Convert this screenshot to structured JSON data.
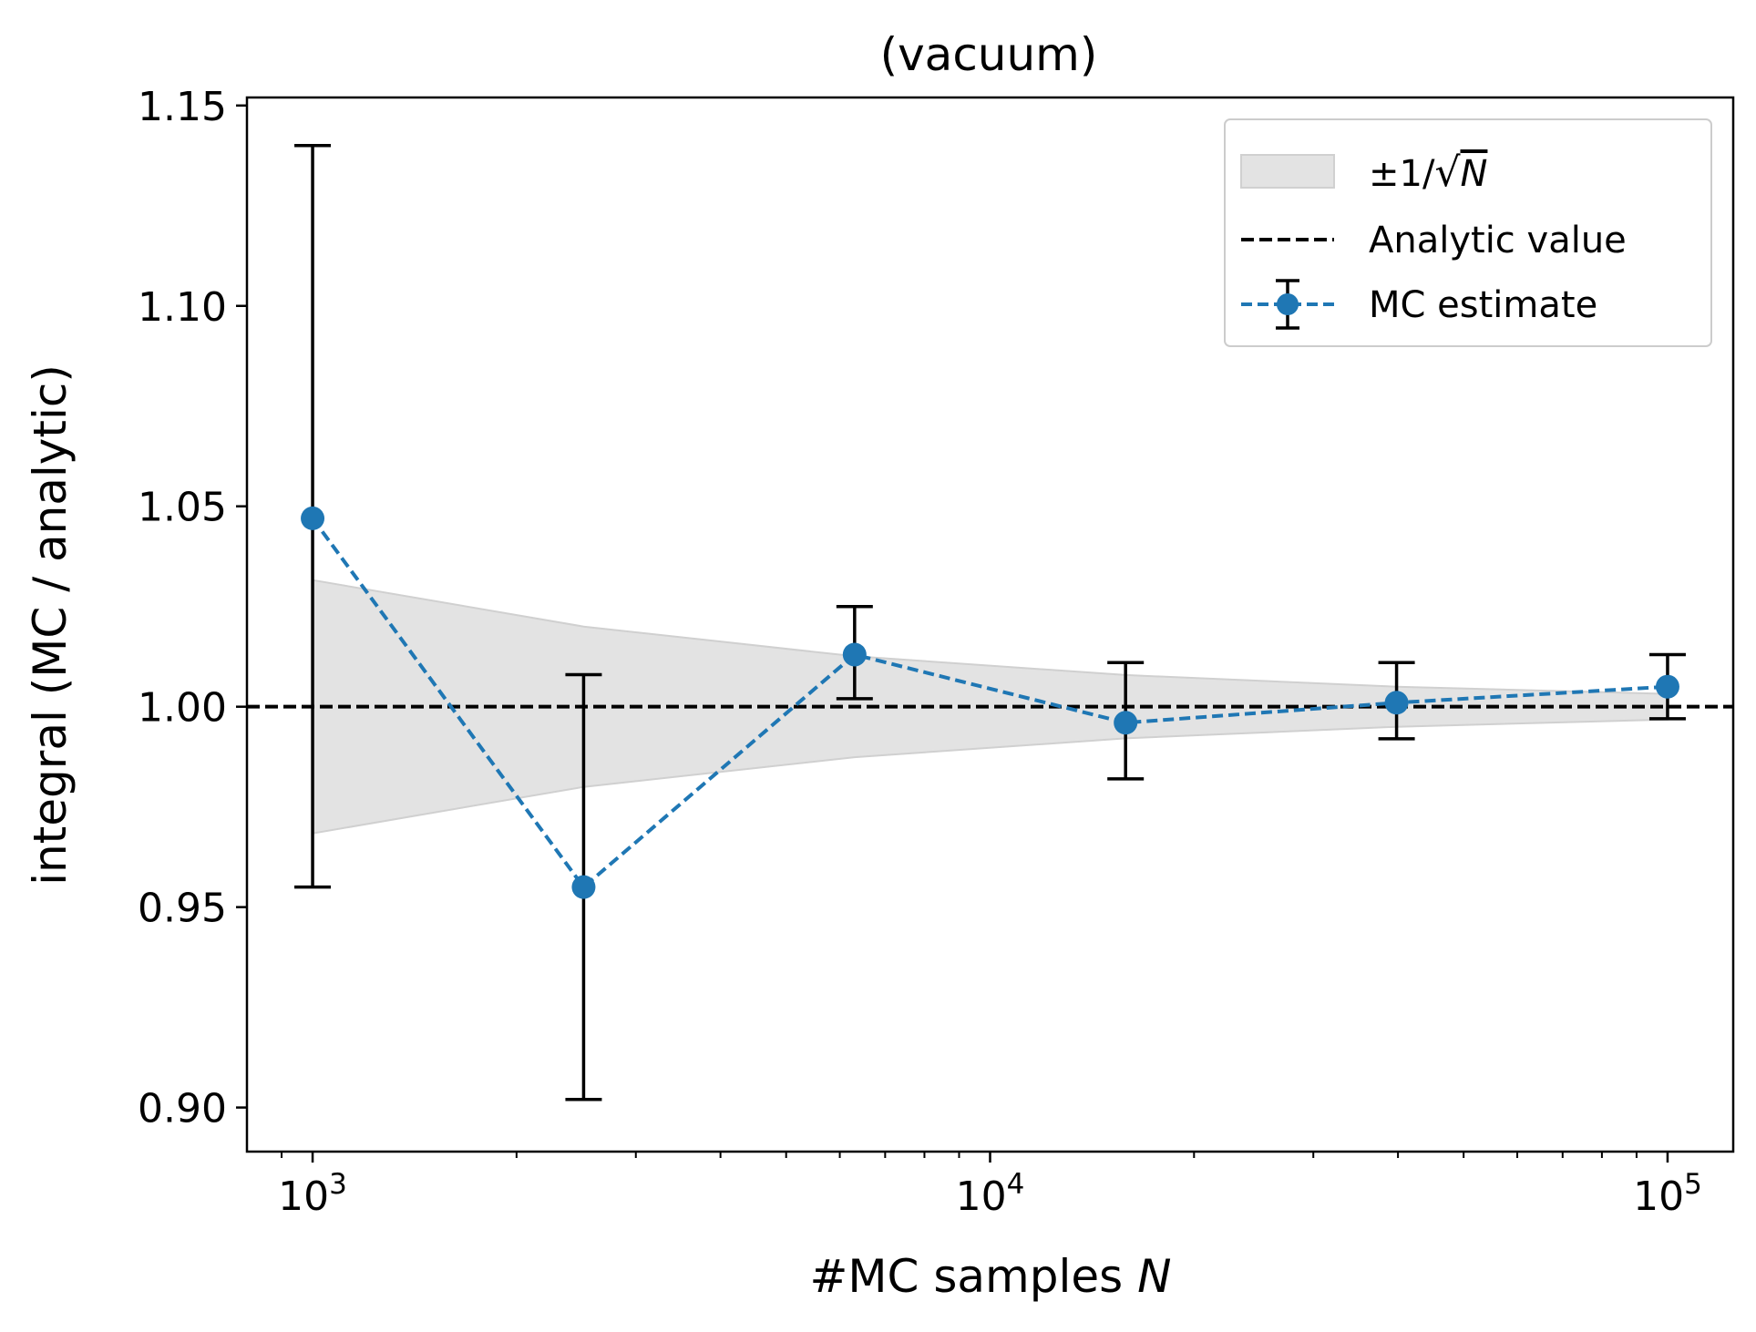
{
  "chart_data": {
    "type": "line",
    "title": "(vacuum)",
    "xlabel": "#MC samples ",
    "xlabel_var": "N",
    "ylabel": "integral (MC / analytic)",
    "xscale": "log",
    "xlim": [
      800,
      125000
    ],
    "ylim": [
      0.889,
      1.152
    ],
    "x_ticks": [
      {
        "value": 1000,
        "base": "10",
        "exp": "3"
      },
      {
        "value": 10000,
        "base": "10",
        "exp": "4"
      },
      {
        "value": 100000,
        "base": "10",
        "exp": "5"
      }
    ],
    "y_ticks": [
      {
        "value": 0.9,
        "label": "0.90"
      },
      {
        "value": 0.95,
        "label": "0.95"
      },
      {
        "value": 1.0,
        "label": "1.00"
      },
      {
        "value": 1.05,
        "label": "1.05"
      },
      {
        "value": 1.1,
        "label": "1.10"
      },
      {
        "value": 1.15,
        "label": "1.15"
      }
    ],
    "grid": false,
    "legend_position": "top-right",
    "analytic_value": 1.0,
    "band": {
      "name": "±1/√N",
      "x": [
        1000,
        2512,
        6310,
        15849,
        39811,
        100000
      ],
      "upper": [
        1.0316,
        1.02,
        1.0126,
        1.0079,
        1.005,
        1.0032
      ],
      "lower": [
        0.9684,
        0.98,
        0.9874,
        0.9921,
        0.995,
        0.9968
      ]
    },
    "series": [
      {
        "name": "MC estimate",
        "x": [
          1000,
          2512,
          6310,
          15849,
          39811,
          100000
        ],
        "y": [
          1.047,
          0.955,
          1.013,
          0.996,
          1.001,
          1.005
        ],
        "err_low": [
          0.955,
          0.902,
          1.002,
          0.982,
          0.992,
          0.997
        ],
        "err_high": [
          1.14,
          1.008,
          1.025,
          1.011,
          1.011,
          1.013
        ]
      }
    ],
    "legend": {
      "band_label": "±1/",
      "band_label_var": "N",
      "analytic_label": "Analytic value",
      "mc_label": "MC estimate"
    },
    "colors": {
      "series": "#1f77b4",
      "band": "#e3e3e3",
      "band_edge": "#d0d0d0",
      "analytic": "#000000",
      "errorbar": "#000000"
    }
  }
}
